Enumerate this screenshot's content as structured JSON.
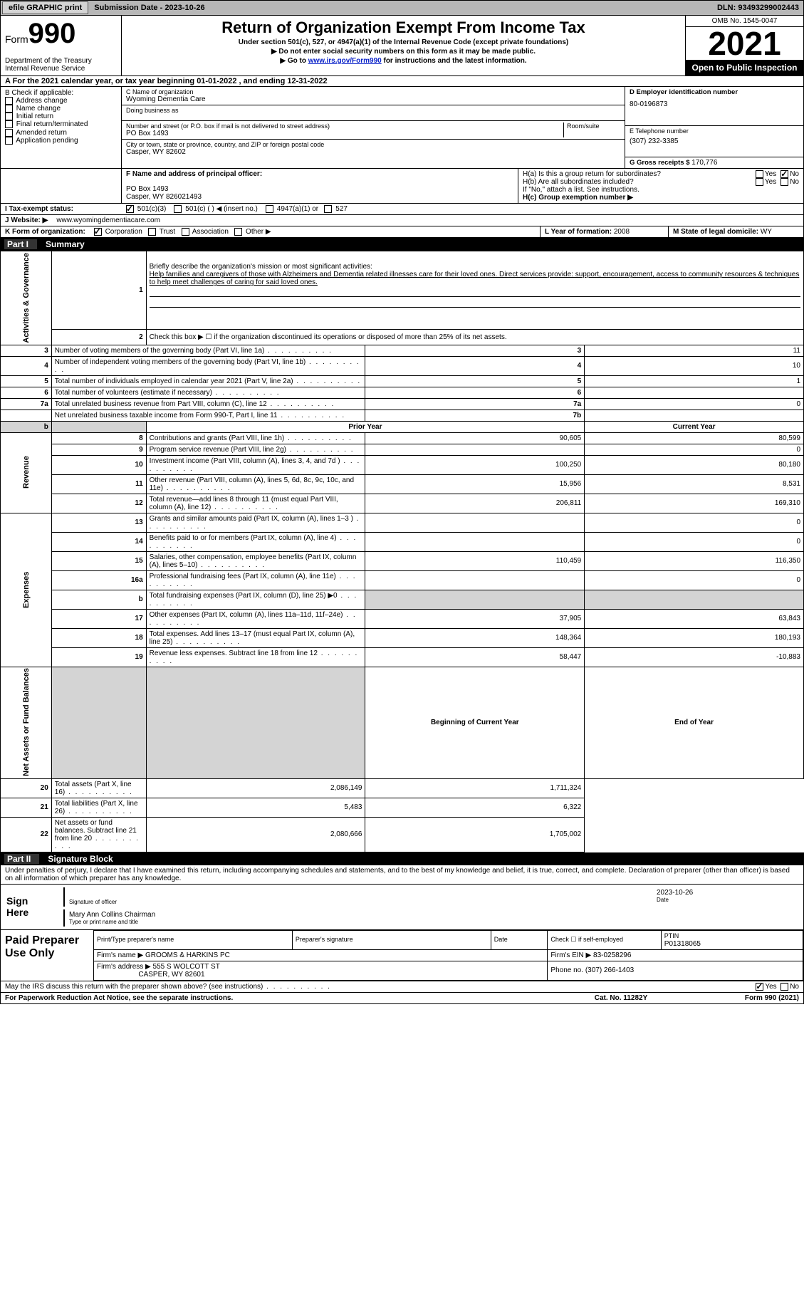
{
  "topbar": {
    "efile_btn": "efile GRAPHIC print",
    "sub_date": "Submission Date - 2023-10-26",
    "dln": "DLN: 93493299002443"
  },
  "header": {
    "form_label": "Form",
    "form_num": "990",
    "dept": "Department of the Treasury Internal Revenue Service",
    "title": "Return of Organization Exempt From Income Tax",
    "sub1": "Under section 501(c), 527, or 4947(a)(1) of the Internal Revenue Code (except private foundations)",
    "sub2": "▶ Do not enter social security numbers on this form as it may be made public.",
    "sub3_pre": "▶ Go to ",
    "sub3_link": "www.irs.gov/Form990",
    "sub3_post": " for instructions and the latest information.",
    "omb": "OMB No. 1545-0047",
    "year": "2021",
    "open": "Open to Public Inspection"
  },
  "row_a": "A For the 2021 calendar year, or tax year beginning 01-01-2022    , and ending 12-31-2022",
  "section_b": {
    "b_label": "B Check if applicable:",
    "b_opts": [
      "Address change",
      "Name change",
      "Initial return",
      "Final return/terminated",
      "Amended return",
      "Application pending"
    ],
    "c_name_label": "C Name of organization",
    "c_name": "Wyoming Dementia Care",
    "dba_label": "Doing business as",
    "addr_label": "Number and street (or P.O. box if mail is not delivered to street address)",
    "room_label": "Room/suite",
    "addr": "PO Box 1493",
    "city_label": "City or town, state or province, country, and ZIP or foreign postal code",
    "city": "Casper, WY  82602",
    "d_label": "D Employer identification number",
    "d_val": "80-0196873",
    "e_label": "E Telephone number",
    "e_val": "(307) 232-3385",
    "g_label": "G Gross receipts $",
    "g_val": "170,776"
  },
  "section_fh": {
    "f_label": "F  Name and address of principal officer:",
    "f_addr1": "PO Box 1493",
    "f_addr2": "Casper, WY  826021493",
    "ha_label": "H(a)  Is this a group return for subordinates?",
    "hb_label": "H(b)  Are all subordinates included?",
    "h_note": "If \"No,\" attach a list. See instructions.",
    "hc_label": "H(c)  Group exemption number ▶",
    "yes": "Yes",
    "no": "No"
  },
  "row_i": {
    "label": "I   Tax-exempt status:",
    "o1": "501(c)(3)",
    "o2": "501(c) (  ) ◀ (insert no.)",
    "o3": "4947(a)(1) or",
    "o4": "527"
  },
  "row_j": {
    "label": "J  Website: ▶",
    "val": "www.wyomingdementiacare.com"
  },
  "row_k": {
    "label": "K Form of organization:",
    "o1": "Corporation",
    "o2": "Trust",
    "o3": "Association",
    "o4": "Other ▶",
    "l_label": "L Year of formation:",
    "l_val": "2008",
    "m_label": "M State of legal domicile:",
    "m_val": "WY"
  },
  "part1": {
    "num": "Part I",
    "title": "Summary"
  },
  "summary": {
    "q1_label": "Briefly describe the organization's mission or most significant activities:",
    "q1_text": "Help families and caregivers of those with Alzheimers and Dementia related illnesses care for their loved ones. Direct services provide: support, encouragement, access to community resources & techniques to help meet challenges of caring for said loved ones.",
    "q2": "Check this box ▶ ☐  if the organization discontinued its operations or disposed of more than 25% of its net assets.",
    "lines": [
      {
        "n": "3",
        "t": "Number of voting members of the governing body (Part VI, line 1a)",
        "box": "3",
        "v": "11"
      },
      {
        "n": "4",
        "t": "Number of independent voting members of the governing body (Part VI, line 1b)",
        "box": "4",
        "v": "10"
      },
      {
        "n": "5",
        "t": "Total number of individuals employed in calendar year 2021 (Part V, line 2a)",
        "box": "5",
        "v": "1"
      },
      {
        "n": "6",
        "t": "Total number of volunteers (estimate if necessary)",
        "box": "6",
        "v": ""
      },
      {
        "n": "7a",
        "t": "Total unrelated business revenue from Part VIII, column (C), line 12",
        "box": "7a",
        "v": "0"
      },
      {
        "n": "",
        "t": "Net unrelated business taxable income from Form 990-T, Part I, line 11",
        "box": "7b",
        "v": ""
      }
    ],
    "prior_label": "Prior Year",
    "current_label": "Current Year",
    "rev": [
      {
        "n": "8",
        "t": "Contributions and grants (Part VIII, line 1h)",
        "p": "90,605",
        "c": "80,599"
      },
      {
        "n": "9",
        "t": "Program service revenue (Part VIII, line 2g)",
        "p": "",
        "c": "0"
      },
      {
        "n": "10",
        "t": "Investment income (Part VIII, column (A), lines 3, 4, and 7d )",
        "p": "100,250",
        "c": "80,180"
      },
      {
        "n": "11",
        "t": "Other revenue (Part VIII, column (A), lines 5, 6d, 8c, 9c, 10c, and 11e)",
        "p": "15,956",
        "c": "8,531"
      },
      {
        "n": "12",
        "t": "Total revenue—add lines 8 through 11 (must equal Part VIII, column (A), line 12)",
        "p": "206,811",
        "c": "169,310"
      }
    ],
    "exp": [
      {
        "n": "13",
        "t": "Grants and similar amounts paid (Part IX, column (A), lines 1–3 )",
        "p": "",
        "c": "0"
      },
      {
        "n": "14",
        "t": "Benefits paid to or for members (Part IX, column (A), line 4)",
        "p": "",
        "c": "0"
      },
      {
        "n": "15",
        "t": "Salaries, other compensation, employee benefits (Part IX, column (A), lines 5–10)",
        "p": "110,459",
        "c": "116,350"
      },
      {
        "n": "16a",
        "t": "Professional fundraising fees (Part IX, column (A), line 11e)",
        "p": "",
        "c": "0"
      },
      {
        "n": "b",
        "t": "Total fundraising expenses (Part IX, column (D), line 25) ▶0",
        "p": "__shade__",
        "c": "__shade__"
      },
      {
        "n": "17",
        "t": "Other expenses (Part IX, column (A), lines 11a–11d, 11f–24e)",
        "p": "37,905",
        "c": "63,843"
      },
      {
        "n": "18",
        "t": "Total expenses. Add lines 13–17 (must equal Part IX, column (A), line 25)",
        "p": "148,364",
        "c": "180,193"
      },
      {
        "n": "19",
        "t": "Revenue less expenses. Subtract line 18 from line 12",
        "p": "58,447",
        "c": "-10,883"
      }
    ],
    "bal_prior": "Beginning of Current Year",
    "bal_cur": "End of Year",
    "bal": [
      {
        "n": "20",
        "t": "Total assets (Part X, line 16)",
        "p": "2,086,149",
        "c": "1,711,324"
      },
      {
        "n": "21",
        "t": "Total liabilities (Part X, line 26)",
        "p": "5,483",
        "c": "6,322"
      },
      {
        "n": "22",
        "t": "Net assets or fund balances. Subtract line 21 from line 20",
        "p": "2,080,666",
        "c": "1,705,002"
      }
    ],
    "vside": {
      "ag": "Activities & Governance",
      "rev": "Revenue",
      "exp": "Expenses",
      "na": "Net Assets or Fund Balances"
    }
  },
  "part2": {
    "num": "Part II",
    "title": "Signature Block"
  },
  "sig": {
    "decl": "Under penalties of perjury, I declare that I have examined this return, including accompanying schedules and statements, and to the best of my knowledge and belief, it is true, correct, and complete. Declaration of preparer (other than officer) is based on all information of which preparer has any knowledge.",
    "sign_here": "Sign Here",
    "sig_officer": "Signature of officer",
    "date_label": "Date",
    "sig_date": "2023-10-26",
    "name": "Mary Ann Collins  Chairman",
    "name_label": "Type or print name and title"
  },
  "paid": {
    "title": "Paid Preparer Use Only",
    "c1": "Print/Type preparer's name",
    "c2": "Preparer's signature",
    "c3": "Date",
    "c4_pre": "Check ☐ if self-employed",
    "ptin_label": "PTIN",
    "ptin": "P01318065",
    "firm_name_label": "Firm's name    ▶",
    "firm_name": "GROOMS & HARKINS PC",
    "firm_ein_label": "Firm's EIN ▶",
    "firm_ein": "83-0258296",
    "firm_addr_label": "Firm's address ▶",
    "firm_addr1": "555 S WOLCOTT ST",
    "firm_addr2": "CASPER, WY  82601",
    "phone_label": "Phone no.",
    "phone": "(307) 266-1403"
  },
  "footer": {
    "q": "May the IRS discuss this return with the preparer shown above? (see instructions)",
    "yes": "Yes",
    "no": "No",
    "pra": "For Paperwork Reduction Act Notice, see the separate instructions.",
    "cat": "Cat. No. 11282Y",
    "form": "Form 990 (2021)"
  }
}
